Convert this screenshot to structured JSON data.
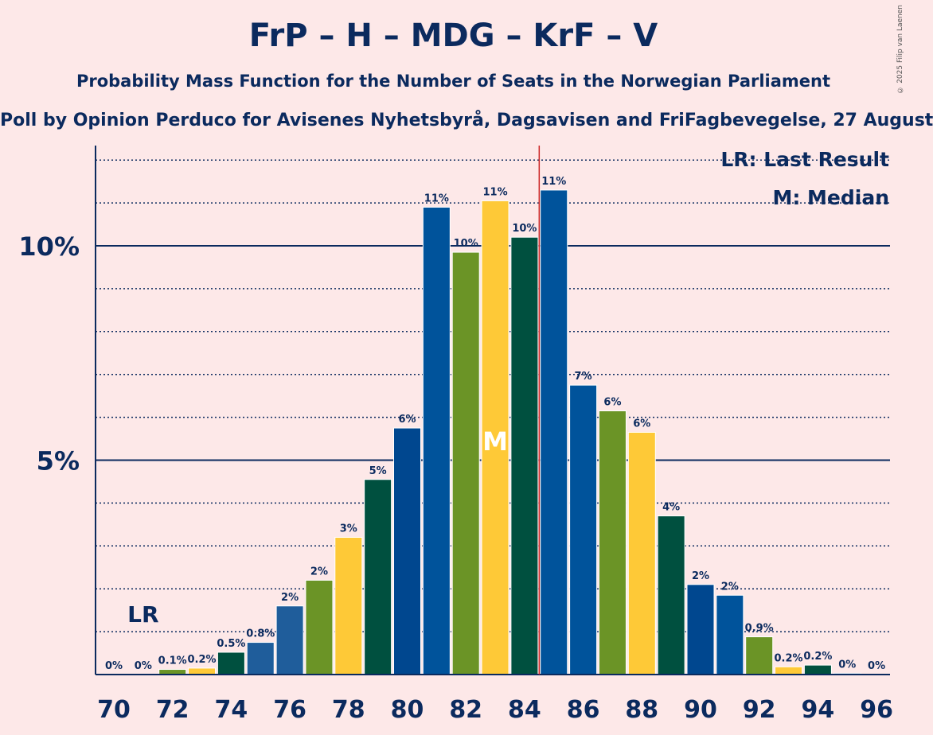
{
  "title": "FrP – H – MDG – KrF – V",
  "subtitle": "Probability Mass Function for the Number of Seats in the Norwegian Parliament",
  "source": "Poll by Opinion Perduco for Avisenes Nyhetsbyrå, Dagsavisen and FriFagbevegelse, 27 August",
  "copyright": "© 2025 Filip van Laenen",
  "chart_data": {
    "type": "bar",
    "x": [
      70,
      71,
      72,
      73,
      74,
      75,
      76,
      77,
      78,
      79,
      80,
      81,
      82,
      83,
      84,
      85,
      86,
      87,
      88,
      89,
      90,
      91,
      92,
      93,
      94,
      95,
      96
    ],
    "values": [
      0,
      0,
      0.12,
      0.15,
      0.52,
      0.75,
      1.6,
      2.2,
      3.2,
      4.55,
      5.75,
      10.9,
      9.85,
      11.05,
      10.2,
      11.3,
      6.75,
      6.15,
      5.65,
      3.7,
      2.1,
      1.85,
      0.88,
      0.18,
      0.22,
      0.03,
      0
    ],
    "labels": [
      "0%",
      "0%",
      "0.1%",
      "0.2%",
      "0.5%",
      "0.8%",
      "2%",
      "2%",
      "3%",
      "5%",
      "6%",
      "11%",
      "10%",
      "11%",
      "10%",
      "11%",
      "7%",
      "6%",
      "6%",
      "4%",
      "2%",
      "2%",
      "0.9%",
      "0.2%",
      "0.2%",
      "0%",
      "0%"
    ],
    "colors": [
      "#1f5d9b",
      "#1f5d9b",
      "#6b9426",
      "#fec937",
      "#00503f",
      "#1f5d9b",
      "#1f5d9b",
      "#6b9426",
      "#fec937",
      "#00503f",
      "#00478f",
      "#00539b",
      "#6b9426",
      "#fec937",
      "#00503f",
      "#00539b",
      "#00539b",
      "#6b9426",
      "#fec937",
      "#00503f",
      "#00478f",
      "#00539b",
      "#6b9426",
      "#fec937",
      "#00503f",
      "#00539b",
      "#00539b"
    ],
    "x_tick_labels": [
      "70",
      "72",
      "74",
      "76",
      "78",
      "80",
      "82",
      "84",
      "86",
      "88",
      "90",
      "92",
      "94",
      "96"
    ],
    "y_tick_labels": [
      "5%",
      "10%"
    ],
    "ylim": [
      0,
      12.4
    ],
    "last_result_seat": 71,
    "last_result_label": "LR",
    "median_seat": 83,
    "median_label": "M",
    "majority_line_seat": 85,
    "legend": [
      "LR: Last Result",
      "M: Median"
    ],
    "legend_position": "top-right",
    "accent_color": "#0b2a5e",
    "majority_color": "#cc2222"
  }
}
